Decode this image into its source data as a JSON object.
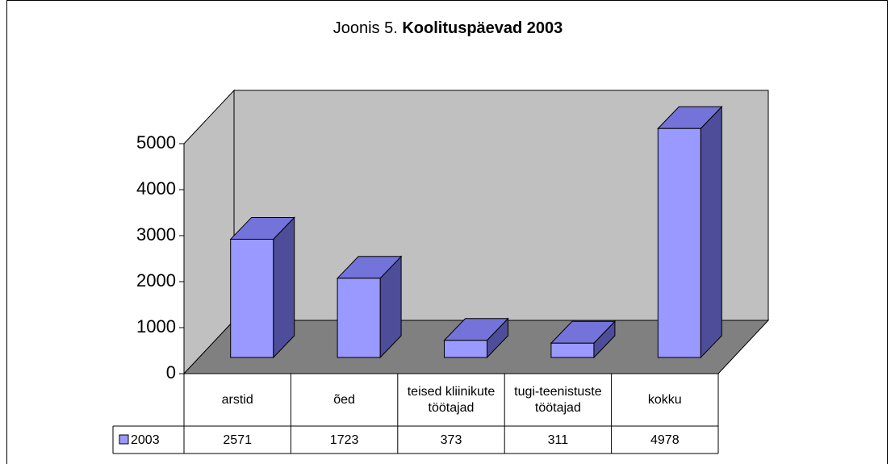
{
  "chart_data": {
    "type": "bar3d",
    "title_parts": [
      "Joonis 5.",
      "Koolituspäevad 2003"
    ],
    "categories": [
      "arstid",
      "õed",
      "teised kliinikute töötajad",
      "tugi-teenistuste töötajad",
      "kokku"
    ],
    "series": [
      {
        "name": "2003",
        "color": "#9999ff",
        "values": [
          2571,
          1723,
          373,
          311,
          4978
        ]
      }
    ],
    "ylim": [
      0,
      5000
    ],
    "yticks": [
      0,
      1000,
      2000,
      3000,
      4000,
      5000
    ],
    "data_table": true
  }
}
